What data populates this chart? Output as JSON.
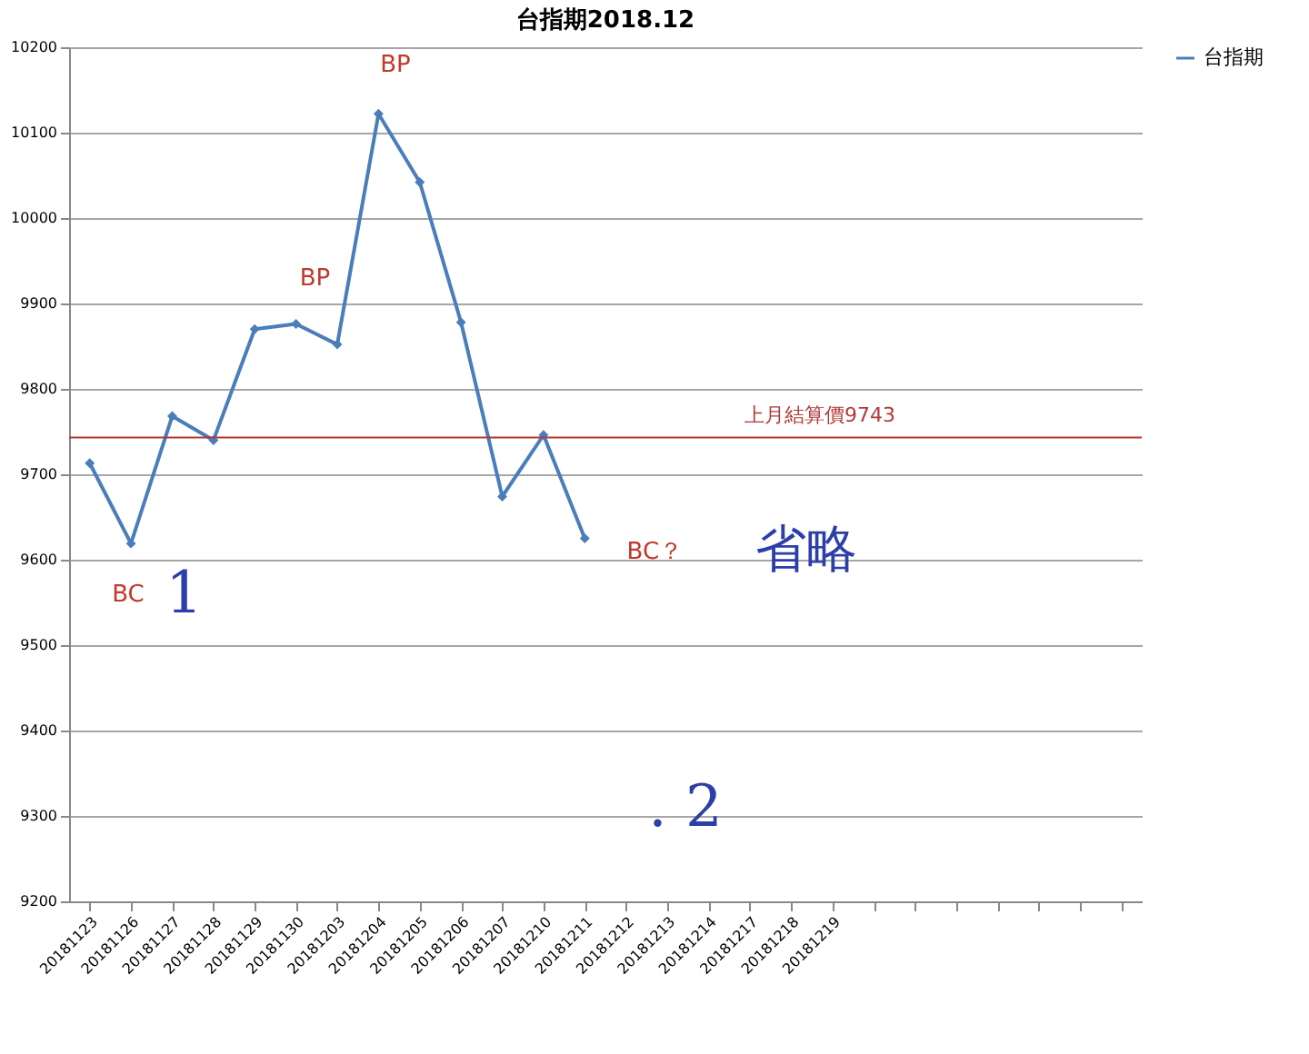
{
  "chart_data": {
    "type": "line",
    "title": "台指期2018.12",
    "categories": [
      "20181123",
      "20181126",
      "20181127",
      "20181128",
      "20181129",
      "20181130",
      "20181203",
      "20181204",
      "20181205",
      "20181206",
      "20181207",
      "20181210",
      "20181211",
      "20181212",
      "20181213",
      "20181214",
      "20181217",
      "20181218",
      "20181219",
      null,
      null,
      null,
      null,
      null,
      null,
      null
    ],
    "series": [
      {
        "name": "台指期",
        "color": "#4a7ebb",
        "values": [
          9713,
          9619,
          9768,
          9740,
          9870,
          9876,
          9852,
          10122,
          10042,
          9878,
          9674,
          9746,
          9625,
          null,
          null,
          null,
          null,
          null,
          null,
          null,
          null,
          null,
          null,
          null,
          null,
          null
        ]
      }
    ],
    "ylim": [
      9200,
      10200
    ],
    "yticks": [
      9200,
      9300,
      9400,
      9500,
      9600,
      9700,
      9800,
      9900,
      10000,
      10100,
      10200
    ],
    "ref_lines": [
      {
        "axis": "y",
        "value": 9743,
        "label": "上月結算價9743",
        "color": "#b03a36"
      }
    ],
    "annotations": [
      "BP",
      "BP",
      "BC",
      "BC？",
      "省略",
      "1",
      ". 2"
    ],
    "grid": "y",
    "legend": "right",
    "marker": "diamond",
    "line_style": "solid"
  }
}
